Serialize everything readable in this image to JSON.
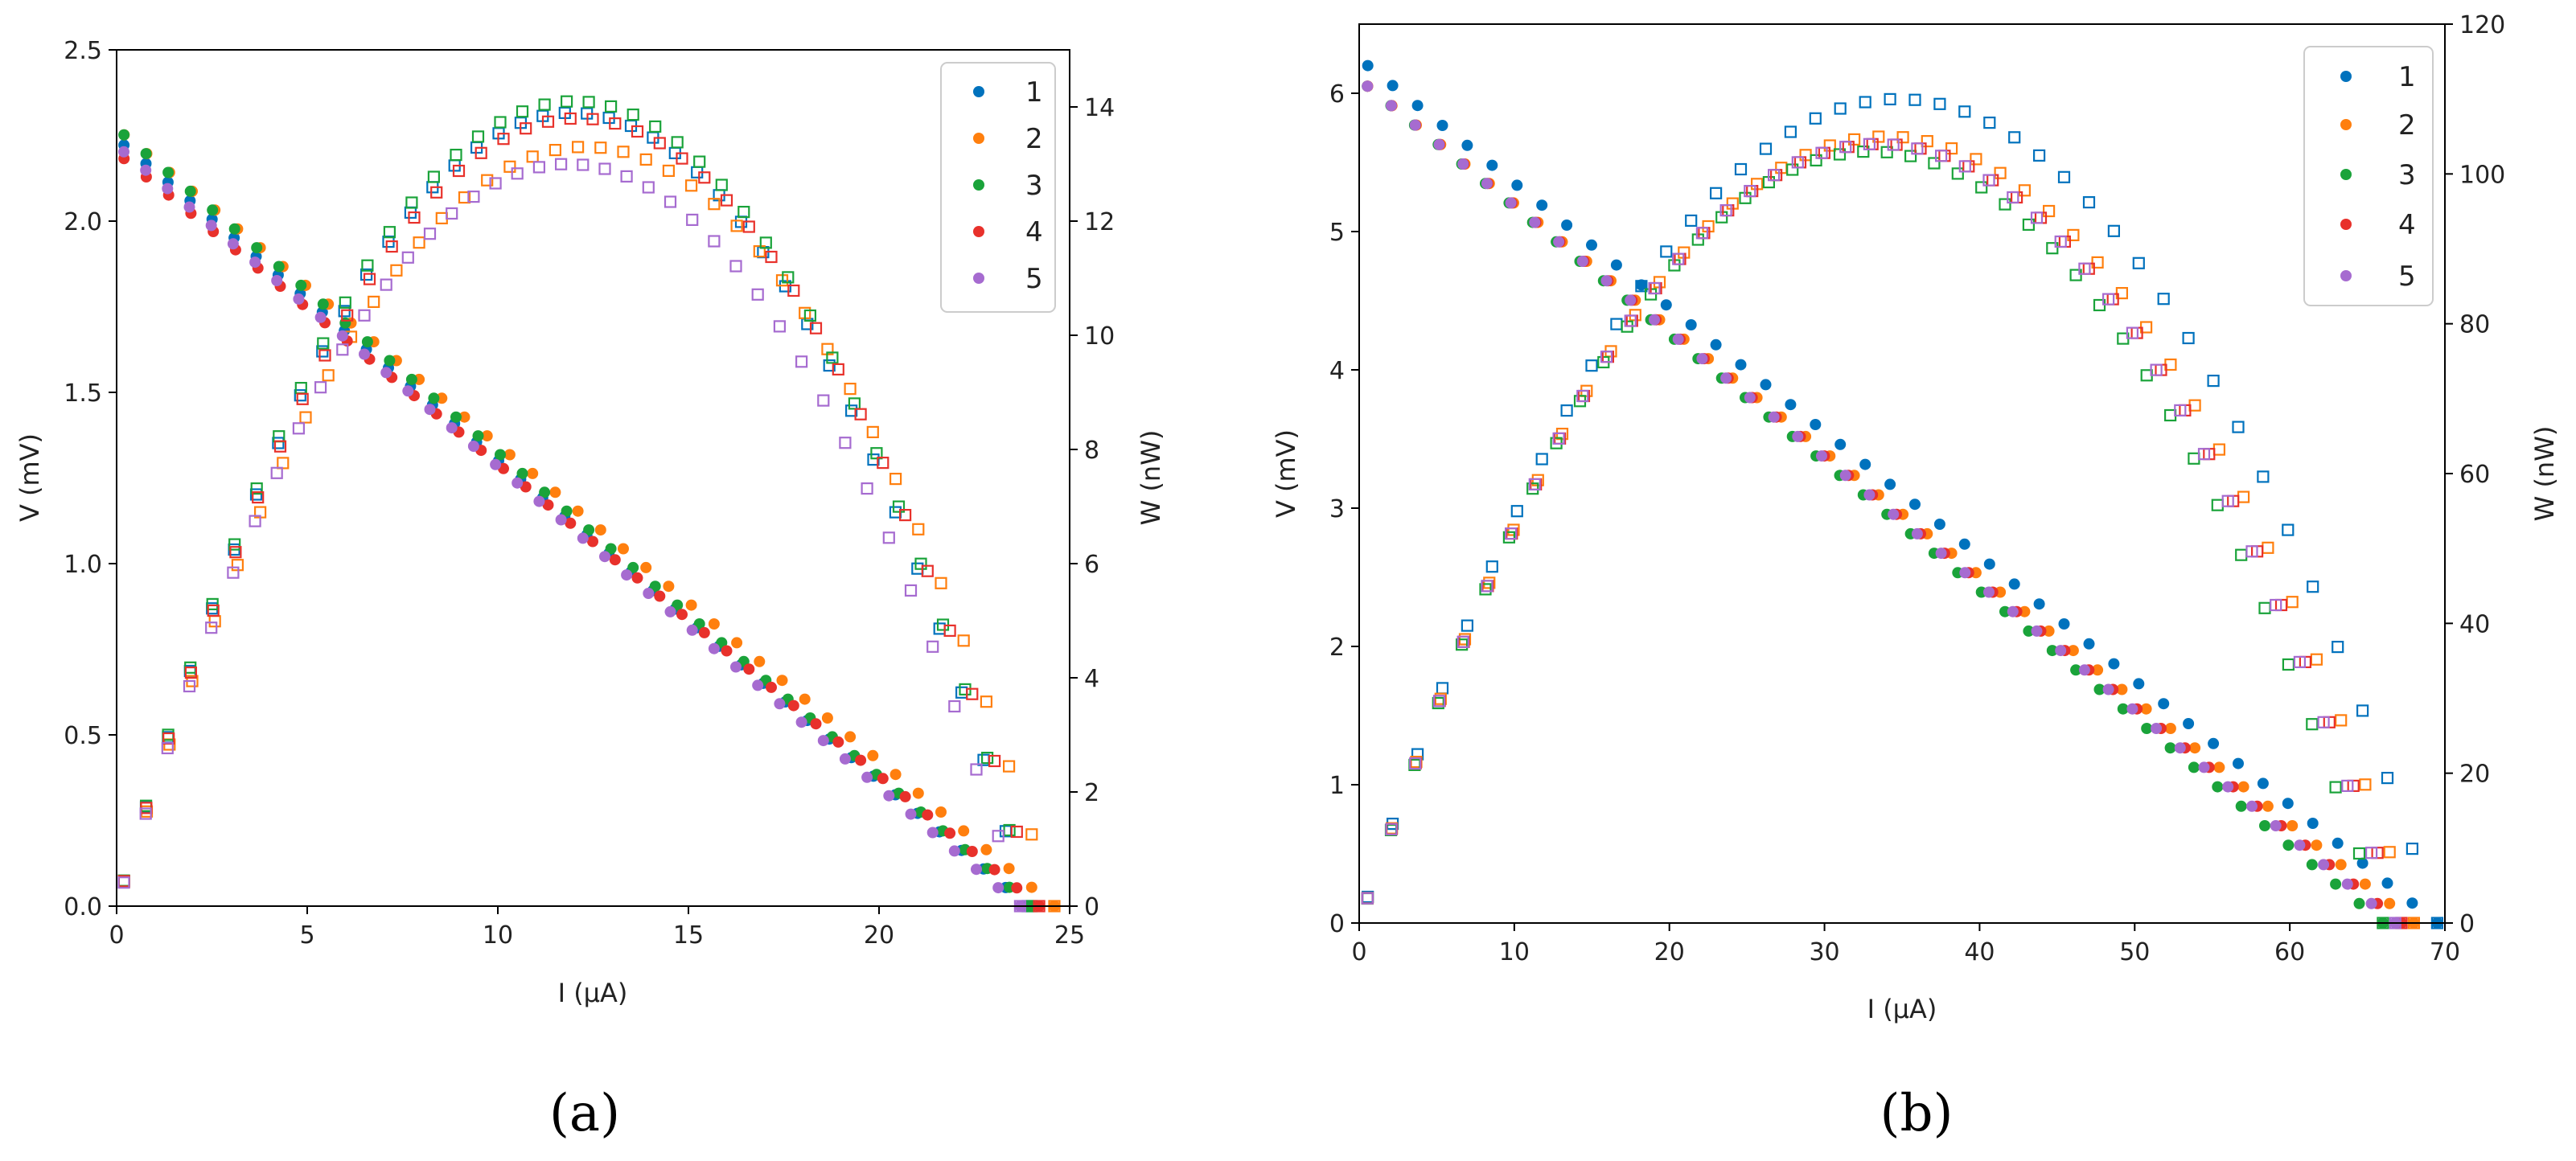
{
  "series_colors": [
    "#0072bd",
    "#ff7f0e",
    "#1aa33a",
    "#e8312b",
    "#a66bd0"
  ],
  "chart_data": [
    {
      "type": "scatter",
      "panel_label": "(a)",
      "xlabel": "I (µA)",
      "ylabel": "V (mV)",
      "y2label": "W (nW)",
      "xlim": [
        0,
        25
      ],
      "ylim": [
        0,
        2.5
      ],
      "y2lim": [
        0,
        15
      ],
      "xticks": [
        "0",
        "5",
        "10",
        "15",
        "20",
        "25"
      ],
      "yticks": [
        "0.0",
        "0.5",
        "1.0",
        "1.5",
        "2.0",
        "2.5"
      ],
      "y2ticks": [
        "0",
        "2",
        "4",
        "6",
        "8",
        "10",
        "12",
        "14"
      ],
      "legend": [
        "1",
        "2",
        "3",
        "4",
        "5"
      ],
      "legend_position": "top-right",
      "markers": {
        "voltage": "filled circle",
        "power": "open square"
      },
      "series": [
        {
          "name": "1",
          "v0": 2.24,
          "imax": 23.9,
          "pmax": 13.9
        },
        {
          "name": "2",
          "v0": 2.27,
          "imax": 24.6,
          "pmax": 13.3
        },
        {
          "name": "3",
          "v0": 2.27,
          "imax": 24.0,
          "pmax": 14.1
        },
        {
          "name": "4",
          "v0": 2.2,
          "imax": 24.2,
          "pmax": 13.8
        },
        {
          "name": "5",
          "v0": 2.22,
          "imax": 23.7,
          "pmax": 13.0
        }
      ]
    },
    {
      "type": "scatter",
      "panel_label": "(b)",
      "xlabel": "I (µA)",
      "ylabel": "V (mV)",
      "y2label": "W (nW)",
      "xlim": [
        0,
        70
      ],
      "ylim": [
        0,
        6.5
      ],
      "y2lim": [
        0,
        120
      ],
      "xticks": [
        "0",
        "10",
        "20",
        "30",
        "40",
        "50",
        "60",
        "70"
      ],
      "yticks": [
        "0",
        "1",
        "2",
        "3",
        "4",
        "5",
        "6"
      ],
      "y2ticks": [
        "0",
        "20",
        "40",
        "60",
        "80",
        "100",
        "120"
      ],
      "legend": [
        "1",
        "2",
        "3",
        "4",
        "5"
      ],
      "legend_position": "top-right",
      "markers": {
        "voltage": "filled circle",
        "power": "open square"
      },
      "series": [
        {
          "name": "1",
          "v0": 6.25,
          "imax": 69.5,
          "pmax": 110
        },
        {
          "name": "2",
          "v0": 6.1,
          "imax": 68.0,
          "pmax": 105
        },
        {
          "name": "3",
          "v0": 6.1,
          "imax": 66.0,
          "pmax": 103
        },
        {
          "name": "4",
          "v0": 6.1,
          "imax": 67.2,
          "pmax": 104
        },
        {
          "name": "5",
          "v0": 6.1,
          "imax": 66.8,
          "pmax": 104
        }
      ]
    }
  ]
}
